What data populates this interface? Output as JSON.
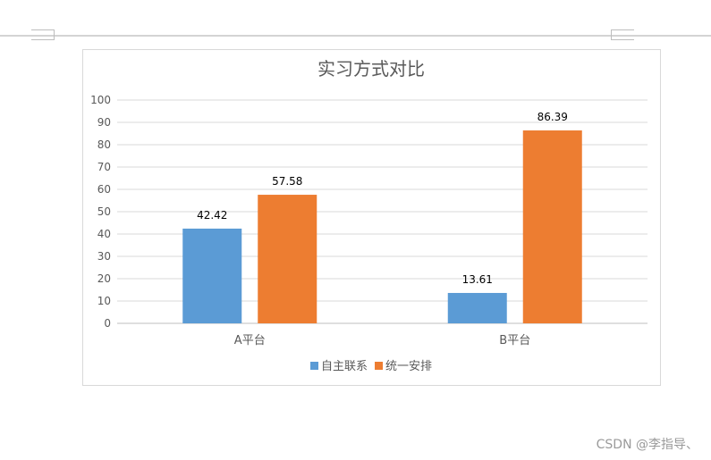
{
  "chart_data": {
    "type": "bar",
    "title": "实习方式对比",
    "categories": [
      "A平台",
      "B平台"
    ],
    "series": [
      {
        "name": "自主联系",
        "values": [
          42.42,
          13.61
        ],
        "color": "#5b9bd5"
      },
      {
        "name": "统一安排",
        "values": [
          57.58,
          86.39
        ],
        "color": "#ed7d31"
      }
    ],
    "value_labels": [
      [
        "42.42",
        "13.61"
      ],
      [
        "57.58",
        "86.39"
      ]
    ],
    "ylim": [
      0,
      100
    ],
    "yticks": [
      0,
      10,
      20,
      30,
      40,
      50,
      60,
      70,
      80,
      90,
      100
    ],
    "grid": true,
    "legend_position": "bottom"
  },
  "watermark": "CSDN @李指导、"
}
